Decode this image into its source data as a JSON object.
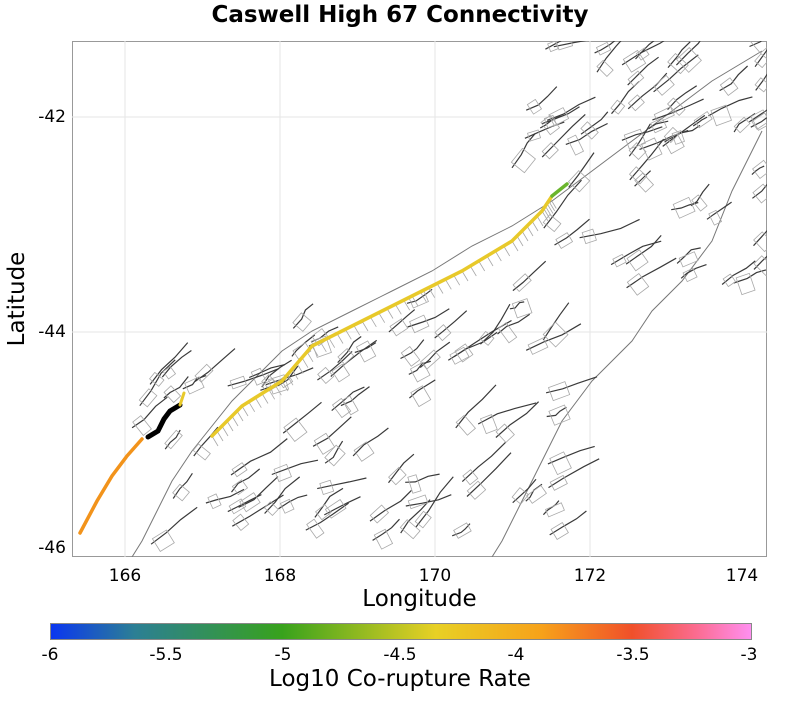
{
  "title": "Caswell High 67 Connectivity",
  "x_axis": {
    "label": "Longitude",
    "ticks": [
      "166",
      "168",
      "170",
      "172",
      "174"
    ]
  },
  "y_axis": {
    "label": "Latitude",
    "ticks": [
      "-42",
      "-44",
      "-46"
    ]
  },
  "colorbar": {
    "label": "Log10 Co-rupture Rate",
    "ticks": [
      "-6",
      "-5.5",
      "-5",
      "-4.5",
      "-4",
      "-3.5",
      "-3"
    ],
    "colors": {
      "low": "#0a36f0",
      "mid": "#e8d025",
      "high": "#ff8ff0"
    }
  },
  "map": {
    "lon_range": [
      165.3,
      174.3
    ],
    "lat_range": [
      -46.1,
      -41.3
    ],
    "background_faults_color": "#3a3a3a",
    "subsection_outline_color": "#a8a8a8",
    "coastline_color": "#777777",
    "rupture_color_main": "#e8c92a",
    "rupture_color_south": "#f2931b",
    "rupture_color_black": "#000000",
    "rupture_color_green": "#6ab52d"
  }
}
